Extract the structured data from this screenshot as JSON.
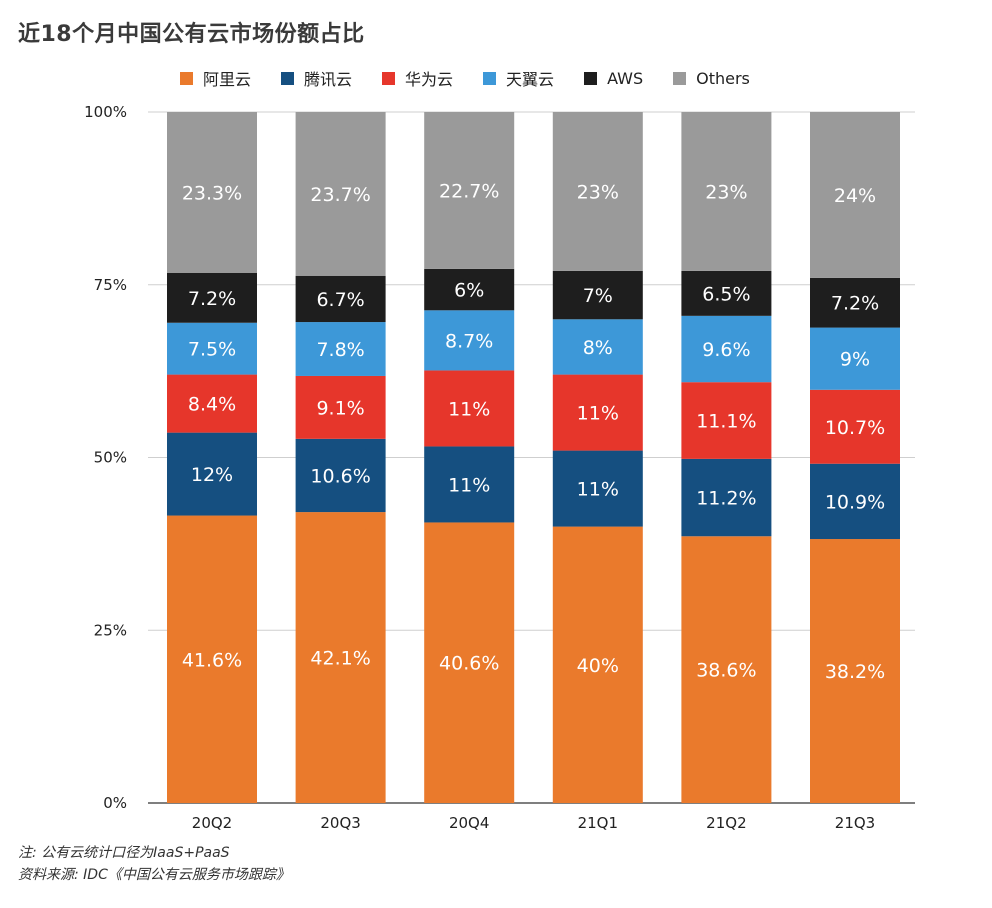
{
  "title": "近18个月中国公有云市场份额占比",
  "footnotes": [
    "注: 公有云统计口径为IaaS+PaaS",
    "资料来源: IDC《中国公有云服务市场跟踪》"
  ],
  "chart_data": {
    "type": "bar",
    "stacked": true,
    "title": "近18个月中国公有云市场份额占比",
    "categories": [
      "20Q2",
      "20Q3",
      "20Q4",
      "21Q1",
      "21Q2",
      "21Q3"
    ],
    "y_ticks": [
      "0%",
      "25%",
      "50%",
      "75%",
      "100%"
    ],
    "ylim": [
      0,
      100
    ],
    "legend_position": "top",
    "series": [
      {
        "name": "阿里云",
        "color": "#ea7a2c",
        "values": [
          41.6,
          42.1,
          40.6,
          40,
          38.6,
          38.2
        ],
        "labels": [
          "41.6%",
          "42.1%",
          "40.6%",
          "40%",
          "38.6%",
          "38.2%"
        ]
      },
      {
        "name": "腾讯云",
        "color": "#154f80",
        "values": [
          12,
          10.6,
          11,
          11,
          11.2,
          10.9
        ],
        "labels": [
          "12%",
          "10.6%",
          "11%",
          "11%",
          "11.2%",
          "10.9%"
        ]
      },
      {
        "name": "华为云",
        "color": "#e6362b",
        "values": [
          8.4,
          9.1,
          11,
          11,
          11.1,
          10.7
        ],
        "labels": [
          "8.4%",
          "9.1%",
          "11%",
          "11%",
          "11.1%",
          "10.7%"
        ]
      },
      {
        "name": "天翼云",
        "color": "#3d98d8",
        "values": [
          7.5,
          7.8,
          8.7,
          8,
          9.6,
          9
        ],
        "labels": [
          "7.5%",
          "7.8%",
          "8.7%",
          "8%",
          "9.6%",
          "9%"
        ]
      },
      {
        "name": "AWS",
        "color": "#1e1e1e",
        "values": [
          7.2,
          6.7,
          6,
          7,
          6.5,
          7.2
        ],
        "labels": [
          "7.2%",
          "6.7%",
          "6%",
          "7%",
          "6.5%",
          "7.2%"
        ]
      },
      {
        "name": "Others",
        "color": "#9a9a9a",
        "values": [
          23.3,
          23.7,
          22.7,
          23,
          23,
          24
        ],
        "labels": [
          "23.3%",
          "23.7%",
          "22.7%",
          "23%",
          "23%",
          "24%"
        ]
      }
    ]
  }
}
